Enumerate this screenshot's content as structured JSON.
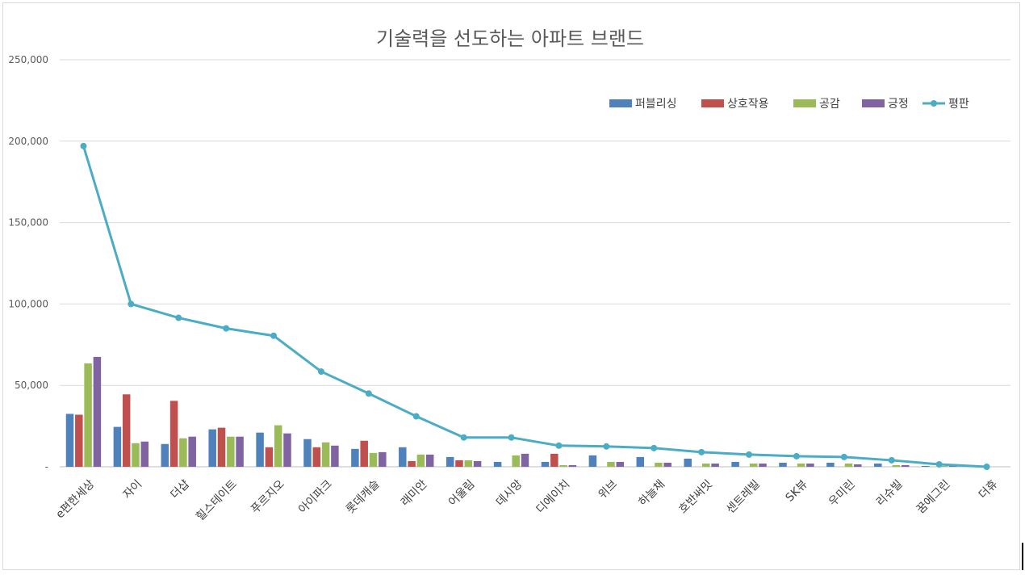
{
  "chart_data": {
    "type": "bar",
    "title": "기술력을 선도하는 아파트 브랜드",
    "xlabel": "",
    "ylabel": "",
    "ylim": [
      0,
      250000
    ],
    "yticks": [
      0,
      50000,
      100000,
      150000,
      200000,
      250000
    ],
    "ytick_labels": [
      "-",
      "50,000",
      "100,000",
      "150,000",
      "200,000",
      "250,000"
    ],
    "grid": true,
    "legend_position": "top-right",
    "categories": [
      "e편한세상",
      "자이",
      "더샵",
      "힐스테이트",
      "푸르지오",
      "아이파크",
      "롯데캐슬",
      "래미안",
      "어울림",
      "데시앙",
      "디에이치",
      "위브",
      "하늘채",
      "호반써밋",
      "센트레빌",
      "SK뷰",
      "우미린",
      "리슈빌",
      "꿈에그린",
      "더휴"
    ],
    "series": [
      {
        "name": "퍼블리싱",
        "kind": "bar",
        "color": "#4f81bd",
        "values": [
          32500,
          24500,
          14000,
          23000,
          21000,
          17000,
          11000,
          12000,
          6000,
          3000,
          3000,
          7000,
          6000,
          5000,
          3000,
          2500,
          2500,
          2000,
          500,
          0
        ]
      },
      {
        "name": "상호작용",
        "kind": "bar",
        "color": "#c0504d",
        "values": [
          32000,
          44500,
          40500,
          24000,
          12000,
          12000,
          16000,
          3500,
          4000,
          0,
          8000,
          0,
          0,
          0,
          0,
          0,
          0,
          0,
          0,
          0
        ]
      },
      {
        "name": "공감",
        "kind": "bar",
        "color": "#9bbb59",
        "values": [
          63500,
          14500,
          17500,
          18500,
          25500,
          15000,
          8500,
          7500,
          4000,
          7000,
          1000,
          3000,
          2500,
          2000,
          2000,
          2000,
          2000,
          1000,
          500,
          0
        ]
      },
      {
        "name": "긍정",
        "kind": "bar",
        "color": "#8064a2",
        "values": [
          67500,
          15500,
          18500,
          18500,
          20500,
          13000,
          9000,
          7500,
          3500,
          8000,
          1000,
          3000,
          2500,
          2000,
          2000,
          2000,
          1500,
          1000,
          500,
          0
        ]
      },
      {
        "name": "평판",
        "kind": "line",
        "color": "#4bacc6",
        "values": [
          197000,
          100000,
          91500,
          85000,
          80500,
          58500,
          45000,
          31000,
          18000,
          18000,
          13000,
          12500,
          11500,
          9000,
          7500,
          6500,
          6000,
          4000,
          1500,
          0
        ]
      }
    ]
  }
}
